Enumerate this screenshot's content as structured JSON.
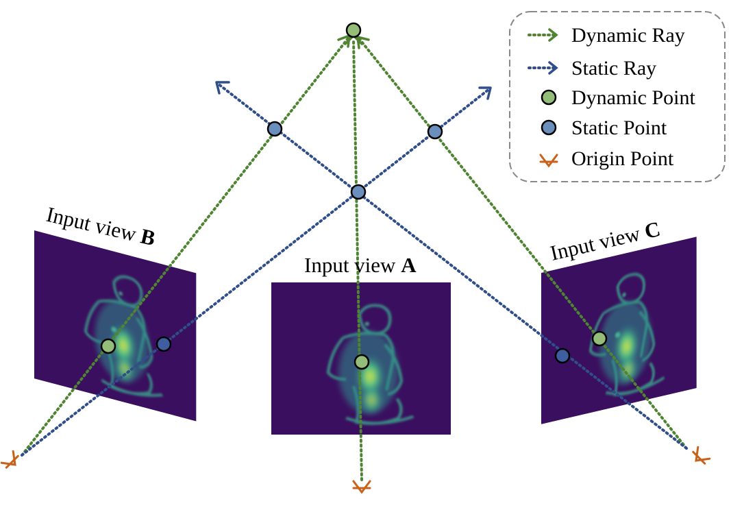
{
  "colors": {
    "dynamic_ray": "#4f8532",
    "static_ray": "#2f4e8a",
    "dynamic_point": "#94bd7a",
    "static_point": "#6b8fbd",
    "origin_point": "#c8611a",
    "view_bg": "#3a0f5e",
    "legend_border": "#888888"
  },
  "legend": {
    "items": [
      {
        "icon": "dotted-arrow-icon",
        "color": "#4f8532",
        "label": "Dynamic Ray"
      },
      {
        "icon": "dotted-arrow-icon",
        "color": "#2f4e8a",
        "label": "Static Ray"
      },
      {
        "icon": "circle-icon",
        "color": "#94bd7a",
        "label": "Dynamic Point"
      },
      {
        "icon": "circle-icon",
        "color": "#6b8fbd",
        "label": "Static Point"
      },
      {
        "icon": "origin-icon",
        "color": "#c8611a",
        "label": "Origin Point"
      }
    ]
  },
  "views": {
    "a": {
      "prefix": "Input view ",
      "letter": "A"
    },
    "b": {
      "prefix": "Input view ",
      "letter": "B"
    },
    "c": {
      "prefix": "Input view ",
      "letter": "C"
    }
  }
}
